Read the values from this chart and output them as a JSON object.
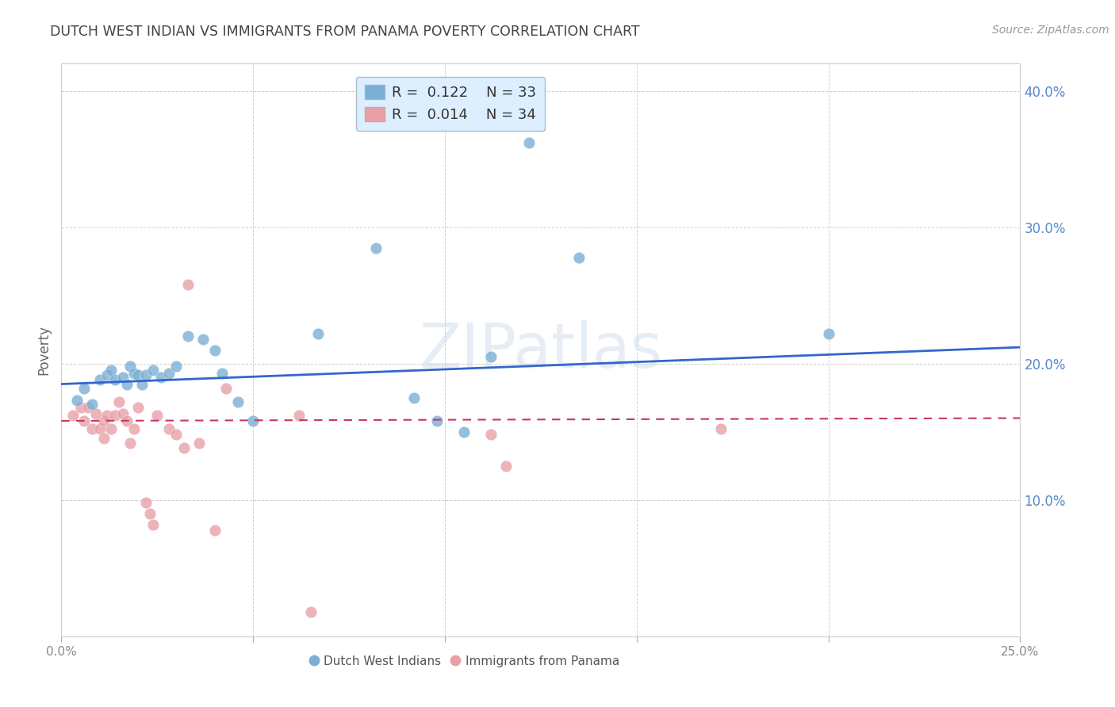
{
  "title": "DUTCH WEST INDIAN VS IMMIGRANTS FROM PANAMA POVERTY CORRELATION CHART",
  "source": "Source: ZipAtlas.com",
  "ylabel": "Poverty",
  "watermark": "ZIPatlas",
  "xlim": [
    0.0,
    0.25
  ],
  "ylim": [
    0.0,
    0.42
  ],
  "xticks": [
    0.0,
    0.05,
    0.1,
    0.15,
    0.2,
    0.25
  ],
  "yticks": [
    0.0,
    0.1,
    0.2,
    0.3,
    0.4
  ],
  "xtick_labels": [
    "0.0%",
    "",
    "",
    "",
    "",
    "25.0%"
  ],
  "ytick_labels_right": [
    "",
    "10.0%",
    "20.0%",
    "30.0%",
    "40.0%"
  ],
  "blue_R": "0.122",
  "blue_N": "33",
  "pink_R": "0.014",
  "pink_N": "34",
  "blue_color": "#7bafd4",
  "pink_color": "#e8a0a8",
  "blue_line_color": "#3366cc",
  "pink_line_color": "#cc3366",
  "grid_color": "#cccccc",
  "title_color": "#444444",
  "axis_label_color": "#666666",
  "right_tick_color": "#5588cc",
  "legend_box_facecolor": "#ddeeff",
  "legend_box_edgecolor": "#aabbcc",
  "blue_scatter": [
    [
      0.004,
      0.173
    ],
    [
      0.006,
      0.182
    ],
    [
      0.008,
      0.17
    ],
    [
      0.01,
      0.188
    ],
    [
      0.012,
      0.192
    ],
    [
      0.013,
      0.195
    ],
    [
      0.014,
      0.188
    ],
    [
      0.016,
      0.19
    ],
    [
      0.017,
      0.185
    ],
    [
      0.018,
      0.198
    ],
    [
      0.019,
      0.193
    ],
    [
      0.02,
      0.192
    ],
    [
      0.021,
      0.185
    ],
    [
      0.022,
      0.192
    ],
    [
      0.024,
      0.195
    ],
    [
      0.026,
      0.19
    ],
    [
      0.028,
      0.193
    ],
    [
      0.03,
      0.198
    ],
    [
      0.033,
      0.22
    ],
    [
      0.037,
      0.218
    ],
    [
      0.04,
      0.21
    ],
    [
      0.042,
      0.193
    ],
    [
      0.046,
      0.172
    ],
    [
      0.05,
      0.158
    ],
    [
      0.067,
      0.222
    ],
    [
      0.082,
      0.285
    ],
    [
      0.092,
      0.175
    ],
    [
      0.098,
      0.158
    ],
    [
      0.105,
      0.15
    ],
    [
      0.112,
      0.205
    ],
    [
      0.122,
      0.362
    ],
    [
      0.135,
      0.278
    ],
    [
      0.2,
      0.222
    ]
  ],
  "pink_scatter": [
    [
      0.003,
      0.162
    ],
    [
      0.005,
      0.168
    ],
    [
      0.006,
      0.158
    ],
    [
      0.007,
      0.168
    ],
    [
      0.008,
      0.152
    ],
    [
      0.009,
      0.163
    ],
    [
      0.01,
      0.152
    ],
    [
      0.011,
      0.158
    ],
    [
      0.011,
      0.145
    ],
    [
      0.012,
      0.162
    ],
    [
      0.013,
      0.152
    ],
    [
      0.014,
      0.162
    ],
    [
      0.015,
      0.172
    ],
    [
      0.016,
      0.163
    ],
    [
      0.017,
      0.158
    ],
    [
      0.018,
      0.142
    ],
    [
      0.019,
      0.152
    ],
    [
      0.02,
      0.168
    ],
    [
      0.022,
      0.098
    ],
    [
      0.023,
      0.09
    ],
    [
      0.024,
      0.082
    ],
    [
      0.025,
      0.162
    ],
    [
      0.028,
      0.152
    ],
    [
      0.03,
      0.148
    ],
    [
      0.032,
      0.138
    ],
    [
      0.033,
      0.258
    ],
    [
      0.036,
      0.142
    ],
    [
      0.04,
      0.078
    ],
    [
      0.043,
      0.182
    ],
    [
      0.062,
      0.162
    ],
    [
      0.065,
      0.018
    ],
    [
      0.112,
      0.148
    ],
    [
      0.116,
      0.125
    ],
    [
      0.172,
      0.152
    ]
  ],
  "blue_line_x": [
    0.0,
    0.25
  ],
  "blue_line_y": [
    0.185,
    0.212
  ],
  "pink_line_x": [
    0.0,
    0.25
  ],
  "pink_line_y": [
    0.158,
    0.16
  ]
}
